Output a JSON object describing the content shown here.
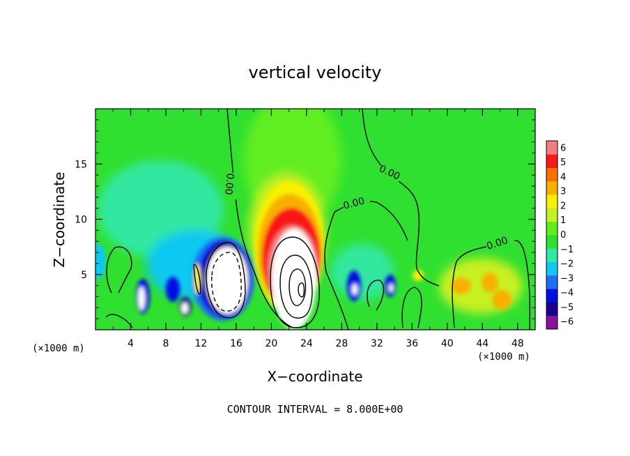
{
  "chart_data": {
    "type": "heatmap",
    "title": "vertical velocity",
    "xlabel": "X−coordinate",
    "ylabel": "Z−coordinate",
    "x_unit": "(×1000 m)",
    "y_unit": "(×1000 m)",
    "xlim": [
      0,
      50
    ],
    "ylim": [
      0,
      20
    ],
    "x_ticks": [
      "4",
      "8",
      "12",
      "16",
      "20",
      "24",
      "28",
      "32",
      "36",
      "40",
      "44",
      "48"
    ],
    "x_tick_values": [
      4,
      8,
      12,
      16,
      20,
      24,
      28,
      32,
      36,
      40,
      44,
      48
    ],
    "y_ticks": [
      "5",
      "10",
      "15"
    ],
    "y_tick_values": [
      5,
      10,
      15
    ],
    "contour_labels": [
      "0.00",
      "0.00",
      "0.00",
      "0.00"
    ],
    "contour_interval_text": "CONTOUR INTERVAL = 8.000E+00",
    "colorbar": {
      "tick_labels": [
        "6",
        "5",
        "4",
        "3",
        "2",
        "1",
        "0",
        "−1",
        "−2",
        "−3",
        "−4",
        "−5",
        "−6"
      ],
      "min": -6,
      "max": 6,
      "colors": [
        "#8a10a0",
        "#1a0090",
        "#0010e0",
        "#1e70f0",
        "#10c8f0",
        "#30e8a0",
        "#30e030",
        "#60ee20",
        "#c8f020",
        "#f8f000",
        "#f8b000",
        "#f87000",
        "#f81818",
        "#f08080"
      ]
    },
    "features": [
      {
        "x": 22.3,
        "z": 4.8,
        "peak": 30
      },
      {
        "x": 15.5,
        "z": 4.2,
        "peak": -24
      },
      {
        "x": 45.0,
        "z": 3.5,
        "peak": 3.5
      },
      {
        "x": 5.3,
        "z": 2.5,
        "peak": -7
      }
    ]
  }
}
